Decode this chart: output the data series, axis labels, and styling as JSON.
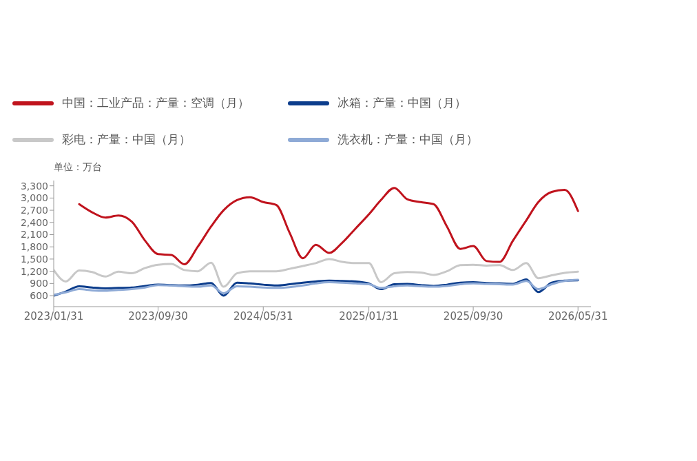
{
  "chart_data": {
    "type": "line",
    "ylabel": "单位：万台",
    "x": [
      "2023-01-31",
      "2023-02-28",
      "2023-03-31",
      "2023-04-30",
      "2023-05-31",
      "2023-06-30",
      "2023-07-31",
      "2023-08-31",
      "2023-09-30",
      "2023-10-31",
      "2023-11-30",
      "2023-12-31",
      "2024-01-31",
      "2024-02-29",
      "2024-03-31",
      "2024-04-30",
      "2024-05-31",
      "2024-06-30",
      "2024-07-31",
      "2024-08-31",
      "2024-09-30",
      "2024-10-31",
      "2024-11-30",
      "2024-12-31",
      "2025-01-31",
      "2025-02-28",
      "2025-03-31",
      "2025-04-30",
      "2025-05-31",
      "2025-06-30",
      "2025-07-31",
      "2025-08-31",
      "2025-09-30",
      "2025-10-31",
      "2025-11-30",
      "2025-12-31",
      "2026-01-31",
      "2026-02-28",
      "2026-03-31",
      "2026-04-30",
      "2026-05-31"
    ],
    "series": [
      {
        "name": "中国：工业产品：产量：空调（月）",
        "color": "#c0131d",
        "values": [
          null,
          null,
          2850,
          2650,
          2520,
          2570,
          2420,
          1950,
          1620,
          1600,
          1370,
          1800,
          2300,
          2700,
          2950,
          3020,
          2900,
          2830,
          2150,
          1520,
          1850,
          1650,
          1900,
          2250,
          2600,
          2950,
          3250,
          2970,
          2900,
          2850,
          2300,
          1750,
          1820,
          1450,
          1430,
          1950,
          2450,
          2900,
          3150,
          3200,
          2680
        ]
      },
      {
        "name": "冰箱：产量：中国（月）",
        "color": "#0c3d8c",
        "values": [
          600,
          700,
          830,
          800,
          780,
          790,
          800,
          840,
          870,
          860,
          850,
          870,
          910,
          600,
          920,
          900,
          870,
          850,
          880,
          920,
          950,
          970,
          960,
          950,
          900,
          760,
          880,
          890,
          860,
          840,
          870,
          920,
          930,
          910,
          900,
          890,
          1000,
          690,
          920,
          970,
          980
        ]
      },
      {
        "name": "彩电：产量：中国（月）",
        "color": "#c8c8c8",
        "values": [
          1230,
          950,
          1220,
          1180,
          1070,
          1190,
          1150,
          1280,
          1360,
          1380,
          1230,
          1200,
          1410,
          820,
          1150,
          1200,
          1200,
          1200,
          1260,
          1330,
          1400,
          1500,
          1430,
          1400,
          1400,
          930,
          1150,
          1180,
          1170,
          1110,
          1200,
          1350,
          1360,
          1340,
          1350,
          1230,
          1400,
          1030,
          1100,
          1160,
          1190
        ]
      },
      {
        "name": "洗衣机：产量：中国（月）",
        "color": "#8eaad6",
        "values": [
          620,
          680,
          760,
          730,
          720,
          740,
          760,
          800,
          860,
          850,
          830,
          820,
          850,
          660,
          830,
          820,
          800,
          790,
          810,
          850,
          900,
          930,
          920,
          900,
          880,
          790,
          830,
          850,
          830,
          820,
          840,
          880,
          900,
          890,
          880,
          870,
          960,
          760,
          880,
          960,
          990
        ]
      }
    ],
    "xlim": [
      "2023-01-31",
      "2026-06-30"
    ],
    "xticks": [
      {
        "value": "2023-01-31",
        "label": "2023/01/31"
      },
      {
        "value": "2023-09-30",
        "label": "2023/09/30"
      },
      {
        "value": "2024-05-31",
        "label": "2024/05/31"
      },
      {
        "value": "2025-01-31",
        "label": "2025/01/31"
      },
      {
        "value": "2025-09-30",
        "label": "2025/09/30"
      },
      {
        "value": "2026-05-31",
        "label": "2026/05/31"
      }
    ],
    "ylim": [
      330,
      3430
    ],
    "yticks": [
      600,
      900,
      {
        "value": 1200,
        "label": "1,200"
      },
      {
        "value": 1500,
        "label": "1,500"
      },
      {
        "value": 1800,
        "label": "1,800"
      },
      {
        "value": 2100,
        "label": "2,100"
      },
      {
        "value": 2400,
        "label": "2,400"
      },
      {
        "value": 2700,
        "label": "2,700"
      },
      {
        "value": 3000,
        "label": "3,000"
      },
      {
        "value": 3300,
        "label": "3,300"
      }
    ],
    "grid": false,
    "legend": "top",
    "marker": "none",
    "line_style": "solid"
  }
}
